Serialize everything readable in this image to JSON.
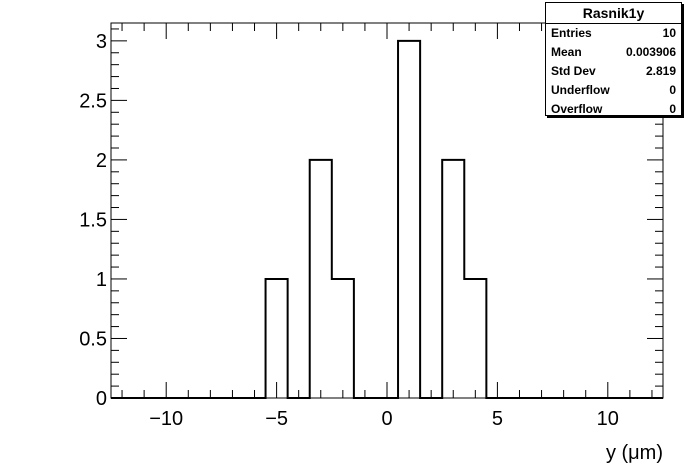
{
  "chart_data": {
    "type": "histogram",
    "xlabel": "y (μm)",
    "ylabel": "",
    "xlim": [
      -12.5,
      12.5
    ],
    "ylim": [
      0,
      3.15
    ],
    "bin_width": 1,
    "bins": [
      {
        "low": -5.5,
        "high": -4.5,
        "count": 1
      },
      {
        "low": -3.5,
        "high": -2.5,
        "count": 2
      },
      {
        "low": -2.5,
        "high": -1.5,
        "count": 1
      },
      {
        "low": 0.5,
        "high": 1.5,
        "count": 3
      },
      {
        "low": 2.5,
        "high": 3.5,
        "count": 2
      },
      {
        "low": 3.5,
        "high": 4.5,
        "count": 1
      }
    ],
    "x_ticks": [
      {
        "value": -10,
        "label": "−10"
      },
      {
        "value": -5,
        "label": "−5"
      },
      {
        "value": 0,
        "label": "0"
      },
      {
        "value": 5,
        "label": "5"
      },
      {
        "value": 10,
        "label": "10"
      }
    ],
    "y_ticks": [
      {
        "value": 0,
        "label": "0"
      },
      {
        "value": 0.5,
        "label": "0.5"
      },
      {
        "value": 1,
        "label": "1"
      },
      {
        "value": 1.5,
        "label": "1.5"
      },
      {
        "value": 2,
        "label": "2"
      },
      {
        "value": 2.5,
        "label": "2.5"
      },
      {
        "value": 3,
        "label": "3"
      }
    ],
    "grid": false,
    "line_color": "#000000"
  },
  "stats": {
    "title": "Rasnik1y",
    "rows": [
      {
        "label": "Entries",
        "value": "10"
      },
      {
        "label": "Mean",
        "value": "0.003906"
      },
      {
        "label": "Std Dev",
        "value": "2.819"
      },
      {
        "label": "Underflow",
        "value": "0"
      },
      {
        "label": "Overflow",
        "value": "0"
      }
    ]
  }
}
